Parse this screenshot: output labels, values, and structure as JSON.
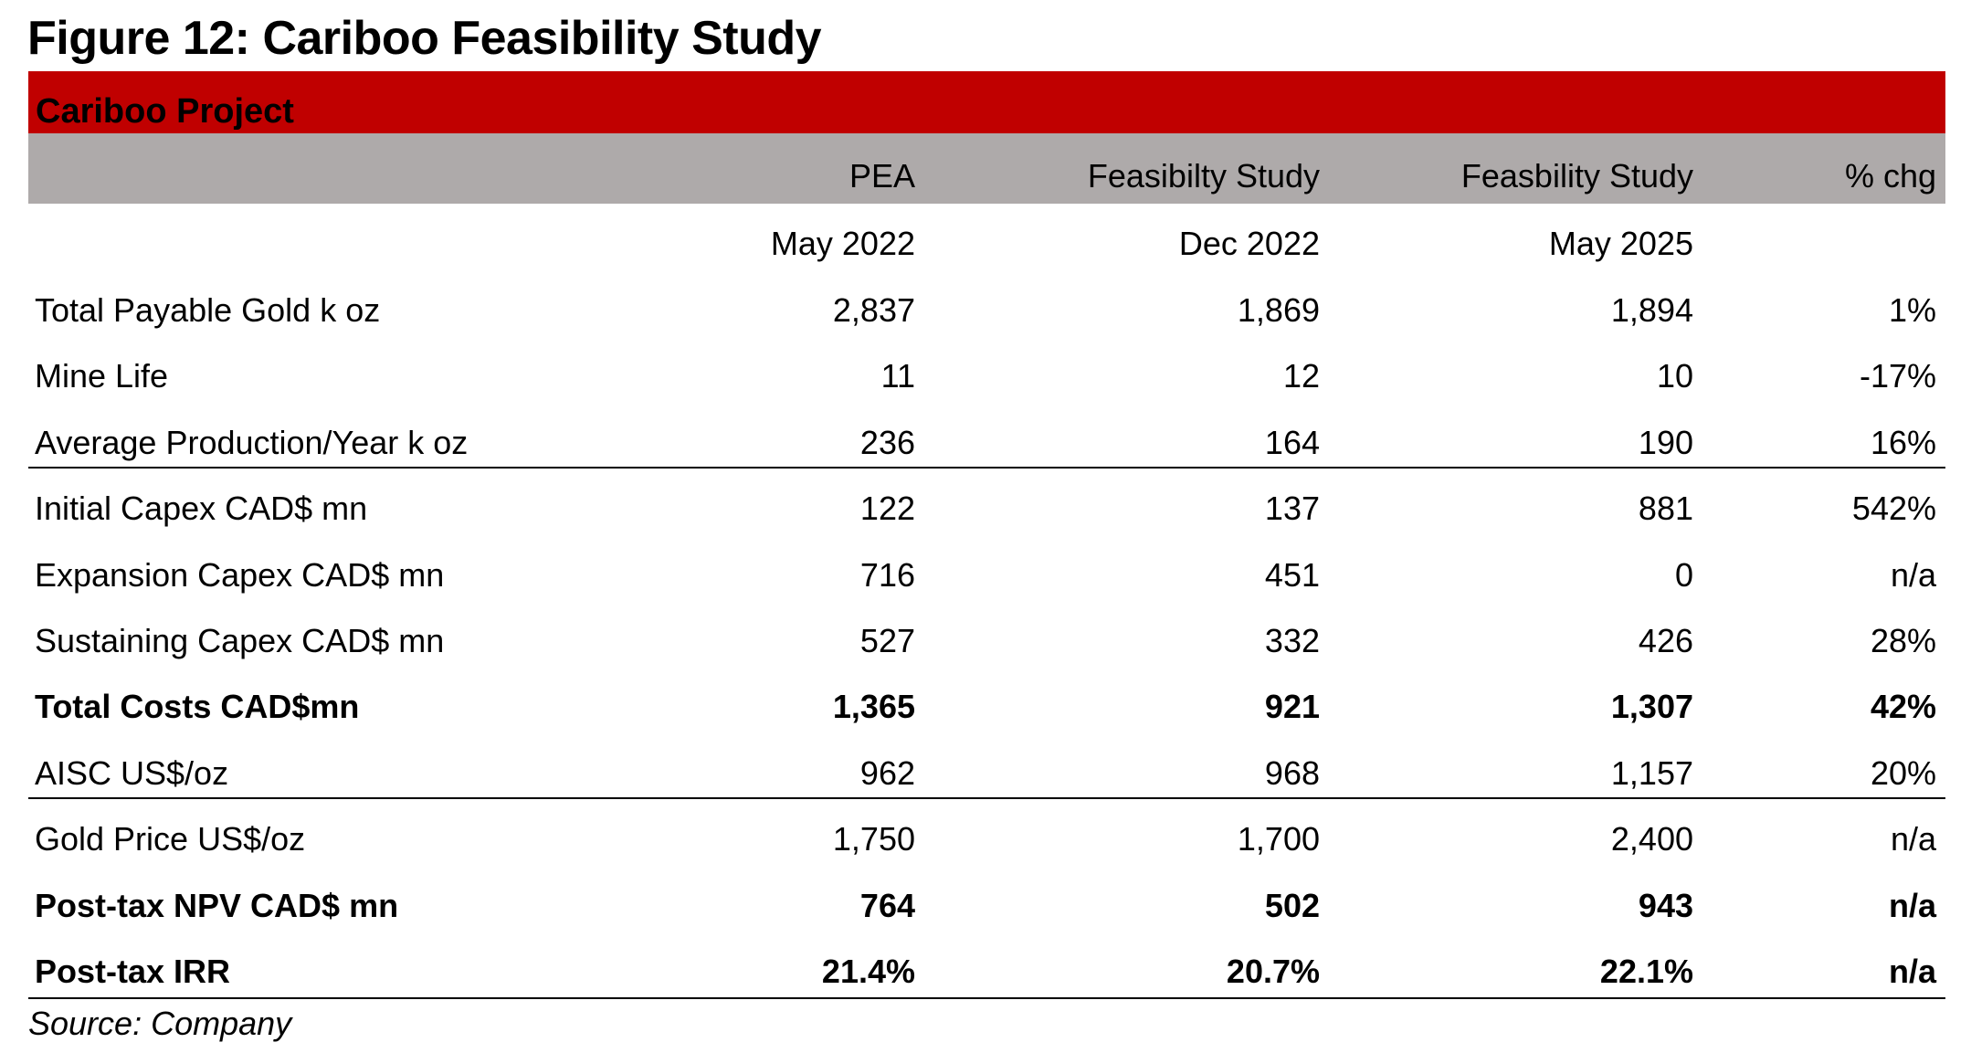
{
  "title": "Figure 12: Cariboo Feasibility Study",
  "section": "Cariboo Project",
  "colors": {
    "band_red": "#c00000",
    "band_gray": "#aeaaaa"
  },
  "columns": [
    {
      "name": "PEA",
      "date": "May 2022"
    },
    {
      "name": "Feasibilty Study",
      "date": "Dec 2022"
    },
    {
      "name": "Feasbility Study",
      "date": "May 2025"
    },
    {
      "name": "% chg",
      "date": ""
    }
  ],
  "rows": [
    {
      "label": "Total Payable Gold k oz",
      "values": [
        "2,837",
        "1,869",
        "1,894",
        "1%"
      ],
      "bold": false
    },
    {
      "label": "Mine Life",
      "values": [
        "11",
        "12",
        "10",
        "-17%"
      ],
      "bold": false
    },
    {
      "label": "Average Production/Year k oz",
      "values": [
        "236",
        "164",
        "190",
        "16%"
      ],
      "bold": false
    },
    {
      "label": "Initial Capex CAD$ mn",
      "values": [
        "122",
        "137",
        "881",
        "542%"
      ],
      "bold": false
    },
    {
      "label": "Expansion Capex CAD$ mn",
      "values": [
        "716",
        "451",
        "0",
        "n/a"
      ],
      "bold": false
    },
    {
      "label": "Sustaining Capex CAD$ mn",
      "values": [
        "527",
        "332",
        "426",
        "28%"
      ],
      "bold": false
    },
    {
      "label": "Total Costs CAD$mn",
      "values": [
        "1,365",
        "921",
        "1,307",
        "42%"
      ],
      "bold": true
    },
    {
      "label": "AISC US$/oz",
      "values": [
        "962",
        "968",
        "1,157",
        "20%"
      ],
      "bold": false
    },
    {
      "label": "Gold Price US$/oz",
      "values": [
        "1,750",
        "1,700",
        "2,400",
        "n/a"
      ],
      "bold": false
    },
    {
      "label": "Post-tax NPV CAD$ mn",
      "values": [
        "764",
        "502",
        "943",
        "n/a"
      ],
      "bold": true
    },
    {
      "label": "Post-tax IRR",
      "values": [
        "21.4%",
        "20.7%",
        "22.1%",
        "n/a"
      ],
      "bold": true
    }
  ],
  "source": "Source: Company"
}
